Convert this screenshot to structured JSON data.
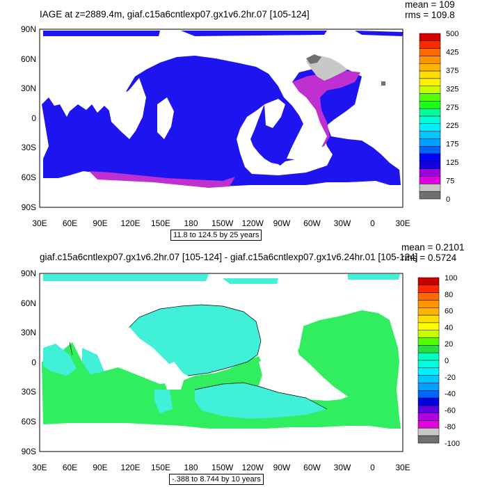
{
  "panels": [
    {
      "title": "IAGE at z=2889.4m, giaf.c15a6cntlexp07.gx1v6.2hr.07 [105-124]",
      "stats": {
        "mean": "mean = 109",
        "rms": "rms = 109.8"
      },
      "range_note": "11.8 to 124.5 by 25 years",
      "lat_labels": [
        "90N",
        "60N",
        "30N",
        "0",
        "30S",
        "60S",
        "90S"
      ],
      "lon_labels": [
        "30E",
        "60E",
        "90E",
        "120E",
        "150E",
        "180",
        "150W",
        "120W",
        "90W",
        "60W",
        "30W",
        "0",
        "30E"
      ],
      "colorbar": {
        "labels": [
          "500",
          "425",
          "375",
          "325",
          "275",
          "225",
          "175",
          "125",
          "75",
          "0"
        ],
        "colors": [
          "#d40000",
          "#ff2a00",
          "#ff6a00",
          "#ff9400",
          "#ffb400",
          "#ffde00",
          "#fff200",
          "#c8ff00",
          "#54ff00",
          "#1aff1a",
          "#00ff9c",
          "#00ffd8",
          "#00f0ff",
          "#00c8ff",
          "#00a0ff",
          "#0064ff",
          "#0000ff",
          "#1200e0",
          "#a000e0",
          "#e000e0",
          "#c8c8c8",
          "#707070"
        ]
      }
    },
    {
      "title": "giaf.c15a6cntlexp07.gx1v6.2hr.07 [105-124] - giaf.c15a6cntlexp07.gx1v6.24hr.01 [105-124]",
      "stats": {
        "mean": "mean = 0.2101",
        "rms": "rms = 0.5724"
      },
      "range_note": "-.388 to 8.744 by 10 years",
      "lat_labels": [
        "90N",
        "60N",
        "30N",
        "0",
        "30S",
        "60S",
        "90S"
      ],
      "lon_labels": [
        "30E",
        "60E",
        "90E",
        "120E",
        "150E",
        "180",
        "150W",
        "120W",
        "90W",
        "60W",
        "30W",
        "0",
        "30E"
      ],
      "colorbar": {
        "labels": [
          "100",
          "80",
          "60",
          "40",
          "20",
          "0",
          "-20",
          "-40",
          "-60",
          "-80",
          "-100"
        ],
        "colors": [
          "#c80000",
          "#ff2a00",
          "#ff6a00",
          "#ff9400",
          "#ffb400",
          "#ffde00",
          "#ffff00",
          "#c8ff00",
          "#54ff00",
          "#22e040",
          "#00ffc0",
          "#00ffe0",
          "#00f0ff",
          "#00c8ff",
          "#00a0ff",
          "#0064ff",
          "#0000e0",
          "#6000e0",
          "#b000e0",
          "#e000e0",
          "#c8c8c8",
          "#707070"
        ]
      }
    }
  ],
  "colors": {
    "ocean_age_dominant": "#1e14f0",
    "ocean_age_old": "#c030d0",
    "ocean_age_oldest": "#a000c8",
    "arctic_gray": "#c8c8c8",
    "arctic_dark": "#707070",
    "diff_cyan": "#40f0d8",
    "diff_green": "#30ee60"
  }
}
